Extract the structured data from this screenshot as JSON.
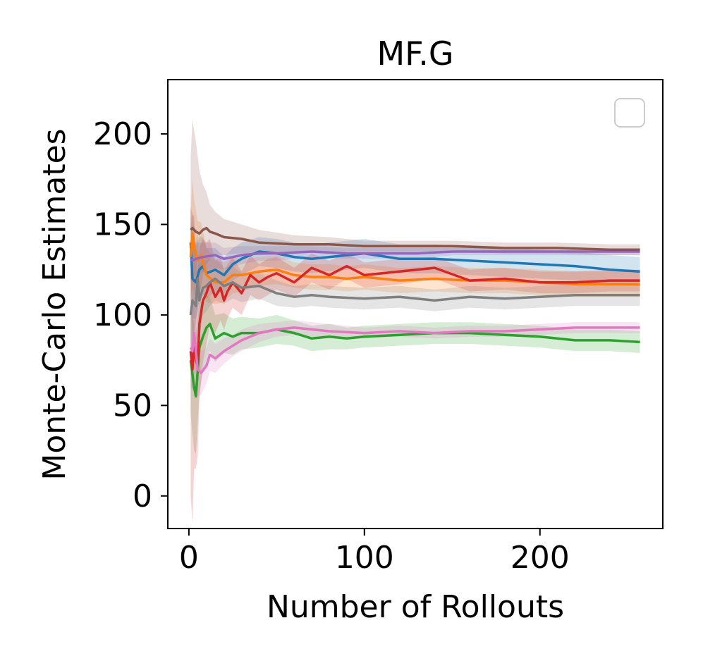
{
  "chart_data": {
    "type": "line",
    "title": "MF.G",
    "xlabel": "Number of Rollouts",
    "ylabel": "Monte-Carlo Estimates",
    "xlim": [
      -12,
      270
    ],
    "ylim": [
      -18,
      230
    ],
    "xticks": [
      0,
      100,
      200
    ],
    "yticks": [
      0,
      50,
      100,
      150,
      200
    ],
    "grid": false,
    "legend": {
      "placement": "top-right",
      "entries": []
    },
    "series": [
      {
        "color": "#1f77b4",
        "x": [
          1,
          2,
          4,
          6,
          8,
          10,
          15,
          20,
          25,
          30,
          40,
          50,
          60,
          70,
          80,
          90,
          100,
          120,
          140,
          160,
          180,
          200,
          220,
          240,
          257
        ],
        "y": [
          140,
          120,
          118,
          125,
          127,
          123,
          125,
          122,
          128,
          131,
          135,
          134,
          132,
          131,
          132,
          133,
          134,
          131,
          131,
          130,
          129,
          128,
          127,
          125,
          124
        ],
        "band": [
          18,
          22,
          20,
          18,
          16,
          14,
          12,
          10,
          9,
          9,
          8,
          8,
          8,
          8,
          8,
          8,
          8,
          8,
          8,
          8,
          8,
          8,
          8,
          8,
          8
        ]
      },
      {
        "color": "#ff7f0e",
        "x": [
          1,
          2,
          3,
          5,
          7,
          10,
          15,
          20,
          25,
          30,
          40,
          50,
          60,
          70,
          80,
          90,
          100,
          120,
          140,
          160,
          180,
          200,
          220,
          240,
          257
        ],
        "y": [
          132,
          145,
          138,
          130,
          133,
          122,
          118,
          118,
          122,
          122,
          124,
          125,
          122,
          121,
          121,
          120,
          121,
          119,
          120,
          119,
          119,
          118,
          117,
          117,
          117
        ],
        "band": [
          25,
          30,
          26,
          22,
          18,
          15,
          12,
          11,
          10,
          9,
          8,
          8,
          7,
          7,
          7,
          7,
          7,
          7,
          7,
          7,
          7,
          7,
          7,
          7,
          7
        ]
      },
      {
        "color": "#2ca02c",
        "x": [
          1,
          3,
          4,
          6,
          8,
          10,
          12,
          15,
          20,
          25,
          30,
          40,
          50,
          60,
          70,
          80,
          90,
          100,
          120,
          140,
          160,
          180,
          200,
          220,
          240,
          257
        ],
        "y": [
          75,
          60,
          55,
          82,
          88,
          93,
          95,
          87,
          90,
          88,
          90,
          90,
          92,
          90,
          87,
          88,
          87,
          88,
          89,
          90,
          90,
          89,
          88,
          86,
          86,
          85
        ],
        "band": [
          30,
          35,
          32,
          25,
          20,
          18,
          15,
          13,
          11,
          10,
          9,
          8,
          8,
          7,
          7,
          7,
          6,
          6,
          6,
          6,
          6,
          6,
          6,
          6,
          6,
          6
        ]
      },
      {
        "color": "#d62728",
        "x": [
          1,
          2,
          3,
          4,
          5,
          6,
          8,
          10,
          12,
          15,
          18,
          20,
          22,
          25,
          30,
          35,
          40,
          45,
          50,
          60,
          70,
          80,
          90,
          100,
          120,
          140,
          160,
          180,
          200,
          220,
          240,
          257
        ],
        "y": [
          80,
          70,
          85,
          75,
          72,
          95,
          108,
          112,
          118,
          110,
          115,
          108,
          113,
          118,
          112,
          122,
          118,
          121,
          123,
          118,
          126,
          122,
          127,
          122,
          124,
          126,
          119,
          120,
          118,
          118,
          119,
          119
        ],
        "band": [
          80,
          85,
          70,
          60,
          50,
          42,
          34,
          28,
          24,
          20,
          18,
          16,
          15,
          14,
          12,
          11,
          10,
          10,
          9,
          8,
          8,
          8,
          7,
          7,
          7,
          6,
          6,
          6,
          6,
          6,
          6,
          6
        ]
      },
      {
        "color": "#9467bd",
        "x": [
          1,
          2,
          4,
          8,
          15,
          20,
          30,
          40,
          50,
          70,
          90,
          110,
          130,
          150,
          170,
          190,
          210,
          230,
          257
        ],
        "y": [
          131,
          130,
          131,
          132,
          133,
          131,
          133,
          134,
          134,
          135,
          134,
          134,
          134,
          135,
          135,
          135,
          135,
          135,
          135
        ],
        "band": [
          10,
          10,
          9,
          8,
          7,
          6,
          5,
          4,
          4,
          3,
          3,
          3,
          3,
          2,
          2,
          2,
          2,
          2,
          2
        ]
      },
      {
        "color": "#8c564b",
        "x": [
          1,
          2,
          4,
          6,
          8,
          10,
          12,
          15,
          20,
          30,
          40,
          60,
          80,
          100,
          120,
          150,
          180,
          210,
          240,
          257
        ],
        "y": [
          147,
          148,
          146,
          145,
          147,
          148,
          146,
          145,
          143,
          142,
          140,
          139,
          139,
          138,
          138,
          138,
          137,
          137,
          136,
          136
        ],
        "band": [
          40,
          60,
          50,
          35,
          25,
          20,
          15,
          12,
          10,
          8,
          7,
          5,
          4,
          3,
          3,
          3,
          3,
          3,
          3,
          3
        ]
      },
      {
        "color": "#e377c2",
        "x": [
          1,
          2,
          3,
          5,
          7,
          10,
          12,
          15,
          20,
          25,
          30,
          40,
          50,
          60,
          80,
          100,
          120,
          140,
          160,
          180,
          200,
          220,
          240,
          257
        ],
        "y": [
          82,
          80,
          90,
          70,
          68,
          72,
          78,
          76,
          80,
          83,
          86,
          90,
          92,
          93,
          91,
          90,
          91,
          90,
          91,
          91,
          92,
          93,
          93,
          93
        ],
        "band": [
          15,
          20,
          18,
          15,
          12,
          10,
          9,
          8,
          7,
          6,
          6,
          5,
          4,
          4,
          4,
          3,
          3,
          3,
          3,
          3,
          3,
          3,
          3,
          3
        ]
      },
      {
        "color": "#7f7f7f",
        "x": [
          1,
          2,
          4,
          5,
          6,
          8,
          10,
          12,
          15,
          20,
          25,
          30,
          40,
          50,
          60,
          70,
          80,
          100,
          120,
          140,
          160,
          180,
          200,
          220,
          240,
          257
        ],
        "y": [
          100,
          108,
          105,
          120,
          108,
          115,
          116,
          118,
          120,
          116,
          118,
          115,
          116,
          112,
          110,
          111,
          110,
          109,
          110,
          108,
          110,
          109,
          110,
          111,
          111,
          111
        ],
        "band": [
          40,
          50,
          35,
          25,
          20,
          15,
          14,
          13,
          12,
          10,
          9,
          8,
          7,
          7,
          6,
          6,
          6,
          6,
          6,
          6,
          6,
          6,
          6,
          6,
          6,
          6
        ]
      }
    ]
  }
}
